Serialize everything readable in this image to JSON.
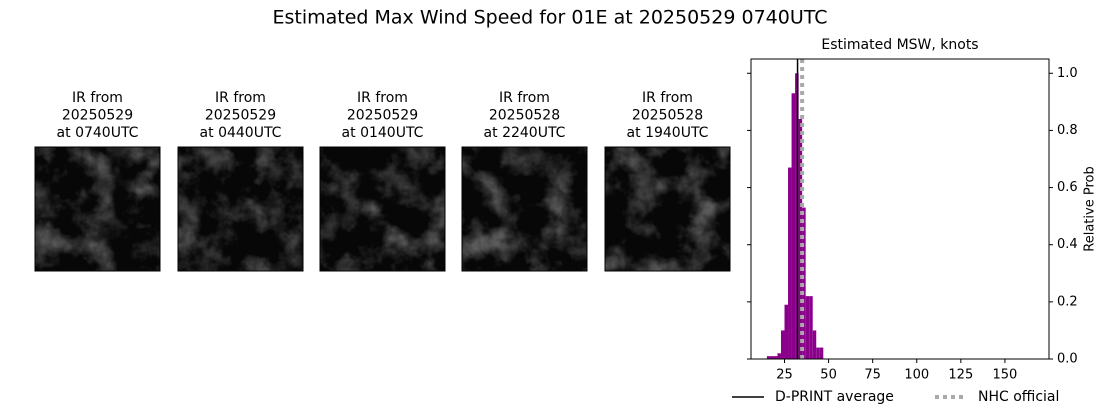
{
  "title": "Estimated Max Wind Speed for 01E at 20250529 0740UTC",
  "panels": [
    {
      "lines": [
        "IR from",
        "20250529",
        "at 0740UTC"
      ]
    },
    {
      "lines": [
        "IR from",
        "20250529",
        "at 0440UTC"
      ]
    },
    {
      "lines": [
        "IR from",
        "20250529",
        "at 0140UTC"
      ]
    },
    {
      "lines": [
        "IR from",
        "20250528",
        "at 2240UTC"
      ]
    },
    {
      "lines": [
        "IR from",
        "20250528",
        "at 1940UTC"
      ]
    }
  ],
  "chart_data": {
    "type": "histogram",
    "title": "Estimated MSW, knots",
    "y_label": "Relative Prob",
    "bins": [
      15,
      17,
      19,
      21,
      23,
      25,
      27,
      29,
      31,
      33,
      35,
      37,
      39,
      41,
      43,
      45,
      47
    ],
    "values": [
      0.01,
      0.01,
      0.01,
      0.02,
      0.1,
      0.19,
      0.67,
      0.93,
      1.0,
      0.84,
      0.53,
      0.22,
      0.22,
      0.1,
      0.04,
      0.04
    ],
    "color": "#8b008b",
    "xlim": [
      6,
      175
    ],
    "xticks": [
      25,
      50,
      75,
      100,
      125,
      150
    ],
    "ylim": [
      0,
      1.05
    ],
    "yticks": [
      {
        "value": 0,
        "label": "0.0"
      },
      {
        "value": 0.2,
        "label": "0.2"
      },
      {
        "value": 0.4,
        "label": "0.4"
      },
      {
        "value": 0.6,
        "label": "0.6"
      },
      {
        "value": 0.8,
        "label": "0.8"
      },
      {
        "value": 1,
        "label": "1.0"
      }
    ],
    "lines": [
      {
        "name": "D-PRINT average",
        "value": 32.4,
        "color": "#000000",
        "dashed": false
      },
      {
        "name": "NHC official",
        "value": 35,
        "color": "#a9a9a9",
        "dashed": true
      }
    ],
    "legend": "below"
  }
}
